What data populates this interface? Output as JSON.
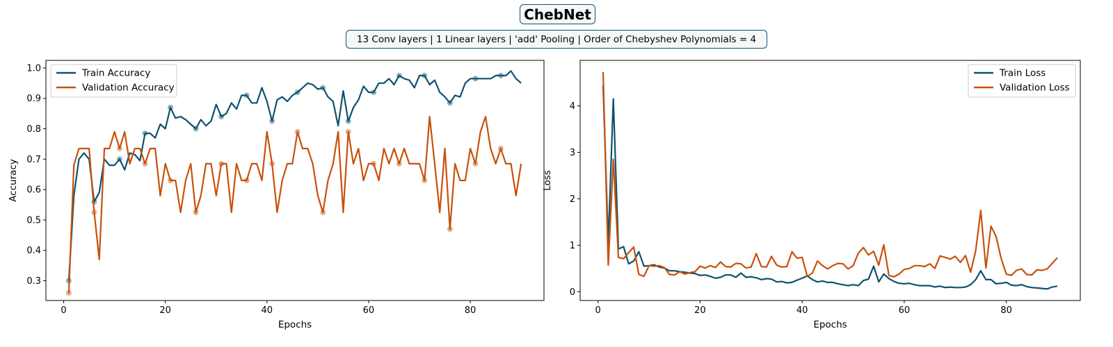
{
  "title": "ChebNet",
  "subtitle": "13 Conv layers | 1 Linear layers | 'add' Pooling | Order of Chebyshev Polynomials = 4",
  "colors": {
    "train": "#0d5170",
    "validation": "#c8500a",
    "frame": "#000000"
  },
  "chart_data": [
    {
      "type": "line",
      "title": "",
      "xlabel": "Epochs",
      "ylabel": "Accuracy",
      "xlim": [
        -3.5,
        94.5
      ],
      "ylim": [
        0.235,
        1.025
      ],
      "xticks": [
        0,
        20,
        40,
        60,
        80
      ],
      "yticks": [
        0.3,
        0.4,
        0.5,
        0.6,
        0.7,
        0.8,
        0.9,
        1.0
      ],
      "ytick_labels": [
        "0.3",
        "0.4",
        "0.5",
        "0.6",
        "0.7",
        "0.8",
        "0.9",
        "1.0"
      ],
      "grid": false,
      "legend_position": "top-left",
      "x": [
        1,
        2,
        3,
        4,
        5,
        6,
        7,
        8,
        9,
        10,
        11,
        12,
        13,
        14,
        15,
        16,
        17,
        18,
        19,
        20,
        21,
        22,
        23,
        24,
        25,
        26,
        27,
        28,
        29,
        30,
        31,
        32,
        33,
        34,
        35,
        36,
        37,
        38,
        39,
        40,
        41,
        42,
        43,
        44,
        45,
        46,
        47,
        48,
        49,
        50,
        51,
        52,
        53,
        54,
        55,
        56,
        57,
        58,
        59,
        60,
        61,
        62,
        63,
        64,
        65,
        66,
        67,
        68,
        69,
        70,
        71,
        72,
        73,
        74,
        75,
        76,
        77,
        78,
        79,
        80,
        81,
        82,
        83,
        84,
        85,
        86,
        87,
        88,
        89,
        90
      ],
      "series": [
        {
          "name": "Train Accuracy",
          "color": "#0d5170",
          "values": [
            0.3,
            0.58,
            0.7,
            0.72,
            0.7,
            0.56,
            0.59,
            0.7,
            0.68,
            0.68,
            0.7,
            0.665,
            0.72,
            0.715,
            0.695,
            0.785,
            0.785,
            0.77,
            0.815,
            0.8,
            0.87,
            0.835,
            0.84,
            0.83,
            0.815,
            0.8,
            0.83,
            0.81,
            0.825,
            0.88,
            0.84,
            0.85,
            0.885,
            0.865,
            0.91,
            0.91,
            0.885,
            0.885,
            0.935,
            0.89,
            0.825,
            0.895,
            0.905,
            0.89,
            0.91,
            0.92,
            0.935,
            0.95,
            0.945,
            0.93,
            0.935,
            0.905,
            0.89,
            0.81,
            0.925,
            0.825,
            0.87,
            0.895,
            0.94,
            0.92,
            0.92,
            0.95,
            0.95,
            0.965,
            0.945,
            0.975,
            0.965,
            0.96,
            0.935,
            0.975,
            0.975,
            0.945,
            0.96,
            0.92,
            0.905,
            0.885,
            0.91,
            0.905,
            0.95,
            0.965,
            0.965,
            0.965,
            0.965,
            0.965,
            0.975,
            0.975,
            0.975,
            0.99,
            0.965,
            0.95
          ]
        },
        {
          "name": "Validation Accuracy",
          "color": "#c8500a",
          "values": [
            0.26,
            0.68,
            0.735,
            0.735,
            0.735,
            0.525,
            0.37,
            0.735,
            0.735,
            0.79,
            0.735,
            0.79,
            0.685,
            0.735,
            0.735,
            0.685,
            0.735,
            0.735,
            0.58,
            0.685,
            0.63,
            0.63,
            0.525,
            0.63,
            0.685,
            0.525,
            0.58,
            0.685,
            0.685,
            0.58,
            0.685,
            0.685,
            0.525,
            0.685,
            0.63,
            0.63,
            0.685,
            0.685,
            0.63,
            0.79,
            0.685,
            0.525,
            0.63,
            0.685,
            0.685,
            0.79,
            0.735,
            0.735,
            0.685,
            0.58,
            0.525,
            0.63,
            0.685,
            0.79,
            0.525,
            0.79,
            0.685,
            0.735,
            0.63,
            0.685,
            0.685,
            0.63,
            0.735,
            0.685,
            0.735,
            0.685,
            0.735,
            0.685,
            0.685,
            0.685,
            0.63,
            0.84,
            0.685,
            0.525,
            0.735,
            0.47,
            0.685,
            0.63,
            0.63,
            0.735,
            0.685,
            0.79,
            0.84,
            0.735,
            0.685,
            0.735,
            0.685,
            0.685,
            0.58,
            0.685
          ]
        }
      ],
      "markers_every": 5
    },
    {
      "type": "line",
      "title": "",
      "xlabel": "Epochs",
      "ylabel": "Loss",
      "xlim": [
        -3.5,
        94.5
      ],
      "ylim": [
        -0.19,
        4.98
      ],
      "xticks": [
        0,
        20,
        40,
        60,
        80
      ],
      "yticks": [
        0,
        1,
        2,
        3,
        4
      ],
      "ytick_labels": [
        "0",
        "1",
        "2",
        "3",
        "4"
      ],
      "grid": false,
      "legend_position": "top-right",
      "x": [
        1,
        2,
        3,
        4,
        5,
        6,
        7,
        8,
        9,
        10,
        11,
        12,
        13,
        14,
        15,
        16,
        17,
        18,
        19,
        20,
        21,
        22,
        23,
        24,
        25,
        26,
        27,
        28,
        29,
        30,
        31,
        32,
        33,
        34,
        35,
        36,
        37,
        38,
        39,
        40,
        41,
        42,
        43,
        44,
        45,
        46,
        47,
        48,
        49,
        50,
        51,
        52,
        53,
        54,
        55,
        56,
        57,
        58,
        59,
        60,
        61,
        62,
        63,
        64,
        65,
        66,
        67,
        68,
        69,
        70,
        71,
        72,
        73,
        74,
        75,
        76,
        77,
        78,
        79,
        80,
        81,
        82,
        83,
        84,
        85,
        86,
        87,
        88,
        89,
        90
      ],
      "series": [
        {
          "name": "Train Loss",
          "color": "#0d5170",
          "values": [
            4.45,
            1.05,
            4.15,
            0.92,
            0.97,
            0.6,
            0.66,
            0.86,
            0.55,
            0.56,
            0.58,
            0.53,
            0.51,
            0.45,
            0.45,
            0.43,
            0.42,
            0.4,
            0.39,
            0.35,
            0.36,
            0.33,
            0.29,
            0.31,
            0.36,
            0.36,
            0.31,
            0.4,
            0.31,
            0.32,
            0.3,
            0.26,
            0.28,
            0.27,
            0.21,
            0.22,
            0.19,
            0.2,
            0.25,
            0.29,
            0.34,
            0.26,
            0.21,
            0.23,
            0.2,
            0.2,
            0.17,
            0.15,
            0.13,
            0.15,
            0.13,
            0.24,
            0.27,
            0.55,
            0.21,
            0.38,
            0.28,
            0.22,
            0.18,
            0.17,
            0.18,
            0.15,
            0.13,
            0.13,
            0.13,
            0.1,
            0.12,
            0.09,
            0.1,
            0.09,
            0.09,
            0.1,
            0.15,
            0.26,
            0.45,
            0.26,
            0.26,
            0.17,
            0.18,
            0.2,
            0.14,
            0.13,
            0.15,
            0.11,
            0.09,
            0.08,
            0.07,
            0.06,
            0.1,
            0.12
          ]
        },
        {
          "name": "Validation Loss",
          "color": "#c8500a",
          "values": [
            4.73,
            0.57,
            2.85,
            0.74,
            0.71,
            0.84,
            0.96,
            0.37,
            0.33,
            0.56,
            0.55,
            0.56,
            0.52,
            0.37,
            0.36,
            0.43,
            0.38,
            0.41,
            0.43,
            0.55,
            0.51,
            0.56,
            0.52,
            0.64,
            0.54,
            0.53,
            0.61,
            0.6,
            0.51,
            0.53,
            0.82,
            0.54,
            0.53,
            0.76,
            0.57,
            0.53,
            0.54,
            0.86,
            0.72,
            0.74,
            0.33,
            0.4,
            0.66,
            0.56,
            0.49,
            0.56,
            0.61,
            0.6,
            0.49,
            0.56,
            0.83,
            0.95,
            0.79,
            0.87,
            0.57,
            1.01,
            0.35,
            0.32,
            0.38,
            0.48,
            0.5,
            0.56,
            0.56,
            0.54,
            0.6,
            0.5,
            0.77,
            0.74,
            0.7,
            0.76,
            0.63,
            0.78,
            0.42,
            0.88,
            1.75,
            0.51,
            1.41,
            1.19,
            0.71,
            0.38,
            0.35,
            0.46,
            0.49,
            0.37,
            0.36,
            0.47,
            0.46,
            0.49,
            0.61,
            0.73
          ]
        }
      ],
      "markers_every": 5
    }
  ]
}
